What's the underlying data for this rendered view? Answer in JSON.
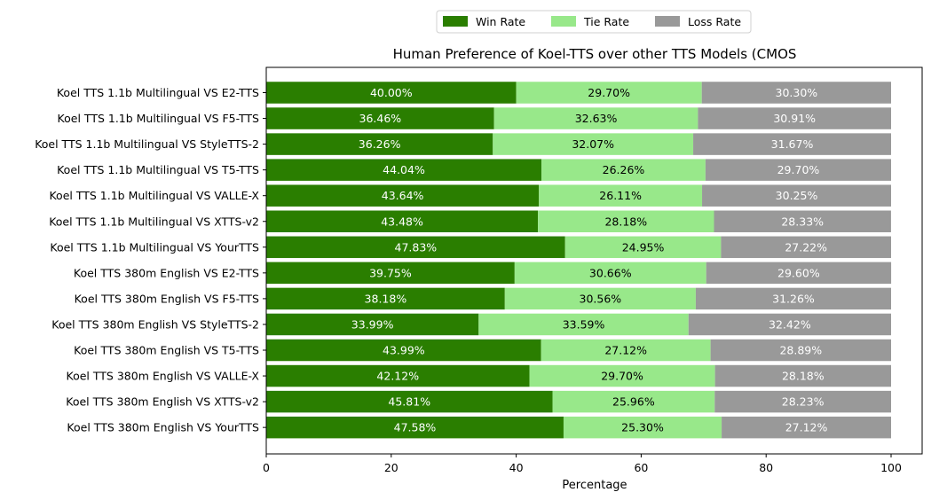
{
  "chart_data": {
    "type": "bar",
    "orientation": "horizontal",
    "stacked": true,
    "title": "Human Preference of Koel-TTS over other TTS Models (CMOS",
    "xlabel": "Percentage",
    "ylabel": "",
    "xlim": [
      0,
      100
    ],
    "xticks": [
      0,
      20,
      40,
      60,
      80,
      100
    ],
    "grid": false,
    "legend_position": "top-center",
    "categories": [
      "Koel TTS 1.1b Multilingual VS E2-TTS",
      "Koel TTS 1.1b Multilingual VS F5-TTS",
      "Koel TTS 1.1b Multilingual VS StyleTTS-2",
      "Koel TTS 1.1b Multilingual VS T5-TTS",
      "Koel TTS 1.1b Multilingual VS VALLE-X",
      "Koel TTS 1.1b Multilingual VS XTTS-v2",
      "Koel TTS 1.1b Multilingual VS YourTTS",
      "Koel TTS 380m English VS E2-TTS",
      "Koel TTS 380m English VS F5-TTS",
      "Koel TTS 380m English VS StyleTTS-2",
      "Koel TTS 380m English VS T5-TTS",
      "Koel TTS 380m English VS VALLE-X",
      "Koel TTS 380m English VS XTTS-v2",
      "Koel TTS 380m English VS YourTTS"
    ],
    "series": [
      {
        "name": "Win Rate",
        "color": "#2a7e00",
        "label_color": "#ffffff",
        "values": [
          40.0,
          36.46,
          36.26,
          44.04,
          43.64,
          43.48,
          47.83,
          39.75,
          38.18,
          33.99,
          43.99,
          42.12,
          45.81,
          47.58
        ],
        "labels": [
          "40.00%",
          "36.46%",
          "36.26%",
          "44.04%",
          "43.64%",
          "43.48%",
          "47.83%",
          "39.75%",
          "38.18%",
          "33.99%",
          "43.99%",
          "42.12%",
          "45.81%",
          "47.58%"
        ]
      },
      {
        "name": "Tie Rate",
        "color": "#98e88a",
        "label_color": "#000000",
        "values": [
          29.7,
          32.63,
          32.07,
          26.26,
          26.11,
          28.18,
          24.95,
          30.66,
          30.56,
          33.59,
          27.12,
          29.7,
          25.96,
          25.3
        ],
        "labels": [
          "29.70%",
          "32.63%",
          "32.07%",
          "26.26%",
          "26.11%",
          "28.18%",
          "24.95%",
          "30.66%",
          "30.56%",
          "33.59%",
          "27.12%",
          "29.70%",
          "25.96%",
          "25.30%"
        ]
      },
      {
        "name": "Loss Rate",
        "color": "#999999",
        "label_color": "#ffffff",
        "values": [
          30.3,
          30.91,
          31.67,
          29.7,
          30.25,
          28.33,
          27.22,
          29.6,
          31.26,
          32.42,
          28.89,
          28.18,
          28.23,
          27.12
        ],
        "labels": [
          "30.30%",
          "30.91%",
          "31.67%",
          "29.70%",
          "30.25%",
          "28.33%",
          "27.22%",
          "29.60%",
          "31.26%",
          "32.42%",
          "28.89%",
          "28.18%",
          "28.23%",
          "27.12%"
        ]
      }
    ]
  }
}
